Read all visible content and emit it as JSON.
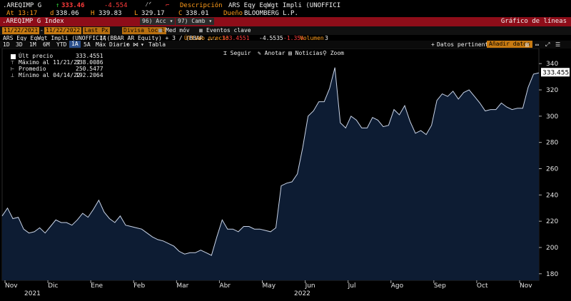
{
  "header": {
    "ticker": ".AREQIMP G",
    "last": "333.46",
    "change": "-4.554",
    "desc_label": "Descripción",
    "desc_value": "ARS Eqy EqWgt Impli (UNOFFICI",
    "time_label": "At 13:17",
    "open_label": "d",
    "open_value": "338.06",
    "high_label": "H",
    "high_value": "339.83",
    "low_label": "L",
    "low_value": "329.17",
    "close_label": "C",
    "close_value": "338.01",
    "owner_label": "Dueño",
    "owner_value": "BLOOMBERG L.P."
  },
  "redbar": {
    "security": ".AREQIMP G Index",
    "acc": "Acc",
    "camb": "Camb",
    "chart_title": "Gráfico de líneas"
  },
  "controls": {
    "date_from": "11/22/2021",
    "date_to": "11/22/2022",
    "field": "Last Px",
    "currency": "Divisa local",
    "med_mov": "Med móv",
    "eventos": "Eventos clave"
  },
  "subtitle": {
    "series": "ARS Eqy EqWgt Impli (UNOFFICIA",
    "mid": "(((BBAR AR Equity) + 3 / (BBAR ...",
    "last_label": "Último precio",
    "last_value": "333.4551",
    "change": "-4.5535",
    "change_pct": "-1.35%",
    "volume_label": "Volumen",
    "volume_value": "3"
  },
  "toolbar": {
    "periods": [
      "1D",
      "3D",
      "1M",
      "6M",
      "YTD",
      "1A",
      "5A",
      "Máx"
    ],
    "active_period": "1A",
    "frequency": "Diario",
    "table": "Tabla",
    "pertinent": "Datos pertinentes",
    "add_data": "Añadir datos"
  },
  "chart_tools": {
    "follow": "Seguir",
    "annotate": "Anotar",
    "news": "Noticias",
    "zoom": "Zoom"
  },
  "legend": {
    "last_label": "Últ precio",
    "last_value": "333.4551",
    "max_label": "Máximo al 11/21/22",
    "max_value": "338.0086",
    "avg_label": "Promedio",
    "avg_value": "250.5477",
    "min_label": "Mínimo al 04/14/22",
    "min_value": "192.2064"
  },
  "colors": {
    "fill": "#0d1c33",
    "line": "#c9d4e8",
    "label_box": "#ffffff"
  },
  "chart_data": {
    "type": "area",
    "ylim": [
      175,
      345
    ],
    "y_ticks": [
      180,
      200,
      220,
      240,
      260,
      280,
      300,
      320,
      340
    ],
    "x_labels": [
      "Nov",
      "Dic",
      "Ene",
      "Feb",
      "Mar",
      "Abr",
      "May",
      "Jun",
      "Jul",
      "Ago",
      "Sep",
      "Oct",
      "Nov"
    ],
    "year_labels": [
      "2021",
      "2022"
    ],
    "last_value_label": "333.4551",
    "x": [
      0,
      0.01,
      0.02,
      0.03,
      0.04,
      0.05,
      0.06,
      0.07,
      0.08,
      0.09,
      0.1,
      0.11,
      0.12,
      0.13,
      0.14,
      0.15,
      0.16,
      0.17,
      0.18,
      0.19,
      0.2,
      0.21,
      0.22,
      0.23,
      0.24,
      0.25,
      0.26,
      0.27,
      0.28,
      0.29,
      0.3,
      0.31,
      0.32,
      0.33,
      0.34,
      0.35,
      0.36,
      0.37,
      0.38,
      0.39,
      0.4,
      0.41,
      0.42,
      0.43,
      0.44,
      0.45,
      0.46,
      0.47,
      0.48,
      0.49,
      0.5,
      0.51,
      0.52,
      0.53,
      0.54,
      0.55,
      0.56,
      0.57,
      0.58,
      0.59,
      0.6,
      0.61,
      0.62,
      0.63,
      0.64,
      0.65,
      0.66,
      0.67,
      0.68,
      0.69,
      0.7,
      0.71,
      0.72,
      0.73,
      0.74,
      0.75,
      0.76,
      0.77,
      0.78,
      0.79,
      0.8,
      0.81,
      0.82,
      0.83,
      0.84,
      0.85,
      0.86,
      0.87,
      0.88,
      0.89,
      0.9,
      0.91,
      0.92,
      0.93,
      0.94,
      0.95,
      0.96,
      0.97,
      0.98,
      0.99,
      1
    ],
    "values": [
      224,
      230,
      222,
      223,
      214,
      211,
      212,
      215,
      211,
      216,
      221,
      219,
      219,
      217,
      221,
      226,
      223,
      229,
      236,
      227,
      222,
      219,
      224,
      217,
      216,
      215,
      214,
      211,
      208,
      206,
      205,
      203,
      201,
      197,
      195,
      196,
      196,
      198,
      196,
      194,
      208,
      221,
      214,
      214,
      212,
      216,
      216,
      214,
      214,
      213,
      212,
      215,
      247,
      249,
      250,
      256,
      276,
      300,
      304,
      311,
      311,
      321,
      337,
      295,
      291,
      300,
      297,
      291,
      291,
      299,
      297,
      292,
      293,
      305,
      301,
      308,
      296,
      287,
      289,
      286,
      293,
      312,
      317,
      315,
      319,
      313,
      318,
      320,
      315,
      310,
      304,
      305,
      305,
      310,
      307,
      305,
      306,
      306,
      322,
      332,
      333
    ]
  }
}
